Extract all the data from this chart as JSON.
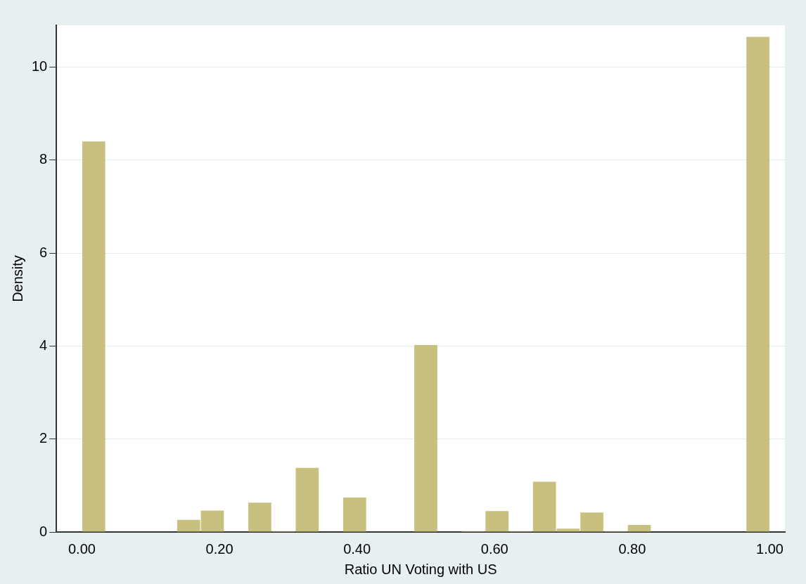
{
  "chart_data": {
    "type": "histogram",
    "xlabel": "Ratio UN Voting with US",
    "ylabel": "Density",
    "bins": [
      0,
      0.0345,
      0.069,
      0.1034,
      0.1379,
      0.1724,
      0.2069,
      0.2414,
      0.2759,
      0.3103,
      0.3448,
      0.3793,
      0.4138,
      0.4483,
      0.4828,
      0.5172,
      0.5517,
      0.5862,
      0.6207,
      0.6552,
      0.6897,
      0.7241,
      0.7586,
      0.7931,
      0.8276,
      0.8621,
      0.8966,
      0.931,
      0.9655,
      1
    ],
    "values": [
      8.4,
      0,
      0,
      0,
      0.26,
      0.46,
      0,
      0.63,
      0.02,
      1.38,
      0,
      0.74,
      0,
      0,
      4.02,
      0,
      0.02,
      0.45,
      0.02,
      1.08,
      0.07,
      0.42,
      0.02,
      0.15,
      0,
      0,
      0,
      0,
      10.65
    ],
    "color": "#c8c07e",
    "xlim": [
      -0.037,
      1.022
    ],
    "xticks": [
      {
        "value": 0,
        "label": "0.00"
      },
      {
        "value": 0.2,
        "label": "0.20"
      },
      {
        "value": 0.4,
        "label": "0.40"
      },
      {
        "value": 0.6,
        "label": "0.60"
      },
      {
        "value": 0.8,
        "label": "0.80"
      },
      {
        "value": 1,
        "label": "1.00"
      }
    ],
    "ylim": [
      0,
      10.9
    ],
    "yticks": [
      0,
      2,
      4,
      6,
      8,
      10
    ],
    "grid": "y",
    "legend": false
  }
}
